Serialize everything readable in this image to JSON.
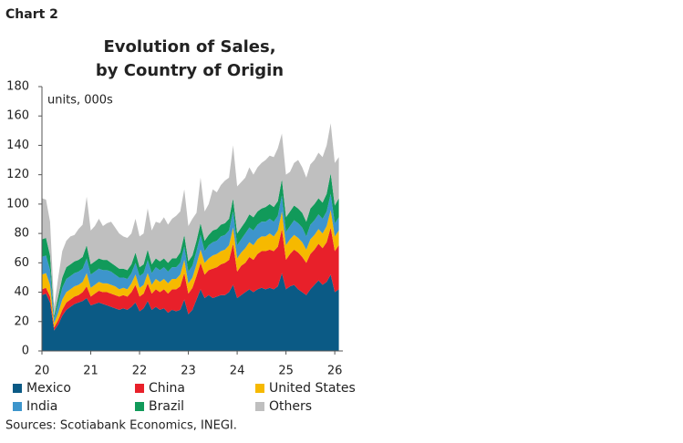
{
  "header": "Chart 2",
  "chart_data": {
    "type": "stacked_area",
    "title": "Evolution of Sales,",
    "subtitle": "by Country of Origin",
    "annotation": "units, 000s",
    "source": "Sources: Scotiabank Economics, INEGI.",
    "categories": [
      "20",
      null,
      null,
      null,
      null,
      null,
      null,
      null,
      null,
      null,
      null,
      null,
      "21",
      null,
      null,
      null,
      null,
      null,
      null,
      null,
      null,
      null,
      null,
      null,
      "22",
      null,
      null,
      null,
      null,
      null,
      null,
      null,
      null,
      null,
      null,
      null,
      "23",
      null,
      null,
      null,
      null,
      null,
      null,
      null,
      null,
      null,
      null,
      null,
      "24",
      null,
      null,
      null,
      null,
      null,
      null,
      null,
      null,
      null,
      null,
      null,
      "25",
      null,
      null,
      null,
      null,
      null,
      null,
      null,
      null,
      null,
      null,
      null,
      "26",
      null
    ],
    "ylim": [
      0,
      180
    ],
    "yticks": [
      0,
      20,
      40,
      60,
      80,
      100,
      120,
      140,
      160,
      180
    ],
    "series": [
      {
        "name": "Mexico",
        "color": "#0b5a85",
        "values": [
          38,
          39,
          33,
          14,
          18,
          24,
          28,
          30,
          32,
          33,
          34,
          36,
          31,
          32,
          33,
          32,
          31,
          30,
          29,
          28,
          29,
          28,
          30,
          33,
          27,
          29,
          34,
          28,
          30,
          28,
          29,
          26,
          28,
          27,
          28,
          35,
          25,
          28,
          35,
          42,
          36,
          38,
          36,
          37,
          38,
          38,
          40,
          45,
          36,
          38,
          40,
          42,
          40,
          42,
          43,
          42,
          43,
          42,
          44,
          53,
          42,
          44,
          45,
          42,
          40,
          38,
          42,
          45,
          48,
          45,
          47,
          52,
          40,
          42
        ]
      },
      {
        "name": "China",
        "color": "#e8202a",
        "values": [
          4,
          4,
          4,
          2,
          3,
          4,
          5,
          5,
          5,
          5,
          6,
          8,
          6,
          7,
          8,
          8,
          9,
          9,
          9,
          9,
          9,
          9,
          10,
          12,
          10,
          10,
          12,
          11,
          12,
          12,
          13,
          13,
          14,
          15,
          16,
          18,
          14,
          15,
          16,
          18,
          16,
          17,
          20,
          20,
          21,
          22,
          22,
          28,
          18,
          20,
          20,
          22,
          22,
          24,
          25,
          26,
          26,
          26,
          27,
          30,
          20,
          22,
          24,
          25,
          24,
          22,
          24,
          24,
          25,
          25,
          27,
          32,
          28,
          30
        ]
      },
      {
        "name": "United States",
        "color": "#f6b900",
        "values": [
          10,
          10,
          8,
          3,
          5,
          7,
          7,
          7,
          7,
          7,
          7,
          9,
          6,
          6,
          6,
          6,
          6,
          6,
          6,
          5,
          5,
          5,
          6,
          7,
          6,
          6,
          7,
          6,
          7,
          7,
          7,
          7,
          7,
          7,
          8,
          9,
          7,
          7,
          8,
          9,
          8,
          8,
          9,
          9,
          9,
          9,
          10,
          11,
          9,
          9,
          10,
          10,
          10,
          10,
          10,
          10,
          11,
          10,
          11,
          12,
          10,
          10,
          10,
          10,
          10,
          9,
          10,
          10,
          10,
          10,
          11,
          12,
          10,
          10
        ]
      },
      {
        "name": "India",
        "color": "#3d95cc",
        "values": [
          12,
          12,
          10,
          3,
          6,
          8,
          9,
          9,
          9,
          9,
          9,
          10,
          9,
          9,
          9,
          9,
          9,
          9,
          8,
          8,
          7,
          7,
          7,
          8,
          8,
          8,
          9,
          8,
          8,
          8,
          8,
          8,
          8,
          8,
          8,
          9,
          8,
          8,
          9,
          10,
          8,
          9,
          9,
          9,
          10,
          10,
          10,
          11,
          9,
          9,
          10,
          10,
          10,
          10,
          10,
          10,
          10,
          10,
          10,
          11,
          9,
          9,
          10,
          10,
          10,
          9,
          10,
          10,
          10,
          10,
          10,
          11,
          9,
          9
        ]
      },
      {
        "name": "Brazil",
        "color": "#119a5a",
        "values": [
          12,
          12,
          10,
          2,
          5,
          7,
          8,
          8,
          8,
          8,
          8,
          9,
          7,
          7,
          7,
          7,
          7,
          6,
          6,
          6,
          6,
          6,
          6,
          7,
          6,
          6,
          7,
          6,
          6,
          6,
          6,
          6,
          6,
          6,
          7,
          8,
          7,
          7,
          7,
          8,
          7,
          7,
          8,
          8,
          8,
          8,
          8,
          9,
          8,
          8,
          8,
          9,
          9,
          9,
          9,
          10,
          10,
          10,
          10,
          11,
          10,
          10,
          10,
          10,
          10,
          10,
          11,
          11,
          11,
          11,
          12,
          14,
          12,
          13
        ]
      },
      {
        "name": "Others",
        "color": "#bfbfbf",
        "values": [
          28,
          26,
          23,
          6,
          13,
          18,
          18,
          19,
          18,
          21,
          22,
          33,
          23,
          24,
          27,
          23,
          25,
          28,
          26,
          24,
          22,
          22,
          21,
          23,
          21,
          21,
          28,
          23,
          25,
          26,
          28,
          26,
          27,
          29,
          28,
          31,
          24,
          25,
          19,
          31,
          20,
          21,
          28,
          25,
          27,
          29,
          28,
          36,
          32,
          31,
          30,
          32,
          29,
          30,
          31,
          32,
          33,
          34,
          36,
          31,
          29,
          27,
          29,
          33,
          31,
          30,
          30,
          30,
          31,
          31,
          33,
          34,
          29,
          28
        ]
      }
    ]
  }
}
